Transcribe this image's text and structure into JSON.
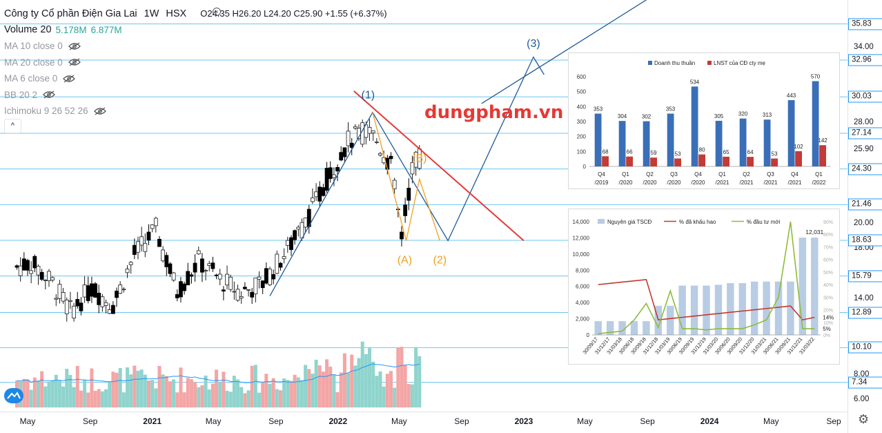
{
  "header": {
    "title": "Công ty Cổ phần Điện Gia Lai",
    "interval": "1W",
    "exchange": "HSX",
    "ohlc": "O24.35  H26.20  L24.20  C25.90  +1.55 (+6.37%)",
    "volume_label": "Volume 20",
    "volume_values": [
      "5.178M",
      "6.877M"
    ],
    "indicators": [
      "MA 10 close 0",
      "MA 20 close 0",
      "MA 6 close 0",
      "BB 20 2",
      "Ichimoku 9 26 52 26"
    ],
    "collapse_glyph": "^",
    "close_glyph": "×",
    "settings_glyph": "⚙"
  },
  "watermark": "dungpham.vn",
  "colors": {
    "up": "#26a69a",
    "down": "#000000",
    "wave": "#1f5a96",
    "wave_orange": "#f0a020",
    "trendline": "#e53935",
    "hline": "#6cc6f0",
    "vol_up": "#8fd4cd",
    "vol_down": "#f4a5a5",
    "vol_ma": "#2196f3",
    "bar_blue": "#3a6fb8",
    "bar_red": "#c43a35"
  },
  "chart_data": [
    {
      "type": "line",
      "title": "",
      "price_axis_ticks": [
        34.0,
        30.03,
        28.0,
        25.9,
        24.3,
        20.0,
        18.0,
        14.0,
        12.89,
        8.0,
        6.0
      ],
      "price_levels": [
        35.83,
        32.96,
        30.03,
        27.14,
        24.3,
        21.46,
        18.63,
        15.79,
        12.89,
        10.1,
        7.34
      ],
      "last_close": 25.9,
      "time_axis_ticks": [
        "May",
        "Sep",
        "2021",
        "May",
        "Sep",
        "2022",
        "May",
        "Sep",
        "2023",
        "May",
        "Sep",
        "2024",
        "May",
        "Sep"
      ],
      "wave_labels": [
        "(1)",
        "(3)",
        "(B)",
        "(A)",
        "(2)"
      ],
      "weekly_close_series": [
        {
          "date": "2020-04-10",
          "close": 16.5
        },
        {
          "date": "2020-05-08",
          "close": 16.8
        },
        {
          "date": "2020-06-19",
          "close": 15.2
        },
        {
          "date": "2020-07-24",
          "close": 13.0
        },
        {
          "date": "2020-09-04",
          "close": 14.8
        },
        {
          "date": "2020-10-16",
          "close": 13.5
        },
        {
          "date": "2020-11-27",
          "close": 17.5
        },
        {
          "date": "2021-01-08",
          "close": 19.5
        },
        {
          "date": "2021-02-19",
          "close": 14.5
        },
        {
          "date": "2021-04-02",
          "close": 17.0
        },
        {
          "date": "2021-05-14",
          "close": 15.5
        },
        {
          "date": "2021-06-25",
          "close": 14.5
        },
        {
          "date": "2021-08-06",
          "close": 15.2
        },
        {
          "date": "2021-09-17",
          "close": 17.5
        },
        {
          "date": "2021-10-29",
          "close": 20.0
        },
        {
          "date": "2021-12-10",
          "close": 23.5
        },
        {
          "date": "2022-01-21",
          "close": 26.5
        },
        {
          "date": "2022-03-04",
          "close": 27.5
        },
        {
          "date": "2022-04-15",
          "close": 24.5
        },
        {
          "date": "2022-05-06",
          "close": 19.0
        },
        {
          "date": "2022-05-27",
          "close": 24.3
        },
        {
          "date": "2022-06-10",
          "close": 25.9
        }
      ]
    },
    {
      "type": "bar",
      "title": "",
      "legend": [
        "Doanh thu thuần",
        "LNST của CĐ cty mẹ"
      ],
      "categories": [
        "Q4\n/2019",
        "Q1\n/2020",
        "Q2\n/2020",
        "Q3\n/2020",
        "Q4\n/2020",
        "Q1\n/2021",
        "Q2\n/2021",
        "Q3\n/2021",
        "Q4\n/2021",
        "Q1\n/2022"
      ],
      "series": [
        {
          "name": "Doanh thu thuần",
          "values": [
            353,
            304,
            302,
            353,
            534,
            305,
            320,
            313,
            443,
            570
          ]
        },
        {
          "name": "LNST của CĐ cty mẹ",
          "values": [
            68,
            66,
            59,
            53,
            80,
            65,
            64,
            53,
            102,
            142
          ]
        }
      ],
      "ylim": [
        0,
        600
      ],
      "yticks": [
        0,
        100,
        200,
        300,
        400,
        500,
        600
      ]
    },
    {
      "type": "bar",
      "title": "",
      "legend": [
        "Nguyên giá TSCĐ",
        "% đã khấu hao",
        "% đầu tư mới"
      ],
      "categories": [
        "30/09/17",
        "31/12/17",
        "31/03/18",
        "30/06/18",
        "30/09/18",
        "31/12/18",
        "31/03/19",
        "30/06/19",
        "30/09/19",
        "31/12/19",
        "31/03/20",
        "30/06/20",
        "30/09/20",
        "31/12/20",
        "31/03/21",
        "30/06/21",
        "30/09/21",
        "31/12/21",
        "31/03/22"
      ],
      "series": [
        {
          "name": "Nguyên giá TSCĐ",
          "values": [
            1700,
            1700,
            1700,
            1700,
            1700,
            3600,
            3600,
            6100,
            6100,
            6100,
            6200,
            6400,
            6400,
            6600,
            6600,
            6600,
            6600,
            12031,
            12031
          ]
        },
        {
          "name": "% đã khấu hao",
          "values": [
            40,
            41,
            42,
            43,
            44,
            12,
            13,
            14,
            15,
            16,
            17,
            18,
            19,
            20,
            21,
            22,
            23,
            12,
            14
          ]
        },
        {
          "name": "% đầu tư mới",
          "values": [
            1,
            2,
            3,
            12,
            25,
            6,
            35,
            5,
            5,
            4,
            5,
            5,
            5,
            8,
            12,
            30,
            90,
            5,
            5
          ]
        }
      ],
      "ylim": [
        0,
        14000
      ],
      "yticks": [
        0,
        2000,
        4000,
        6000,
        8000,
        10000,
        12000,
        14000
      ],
      "y2ticks": [
        "0%",
        "10%",
        "20%",
        "30%",
        "40%",
        "50%",
        "60%",
        "70%",
        "80%",
        "90%"
      ],
      "annotations": [
        "12,031",
        "14%",
        "5%"
      ]
    }
  ]
}
